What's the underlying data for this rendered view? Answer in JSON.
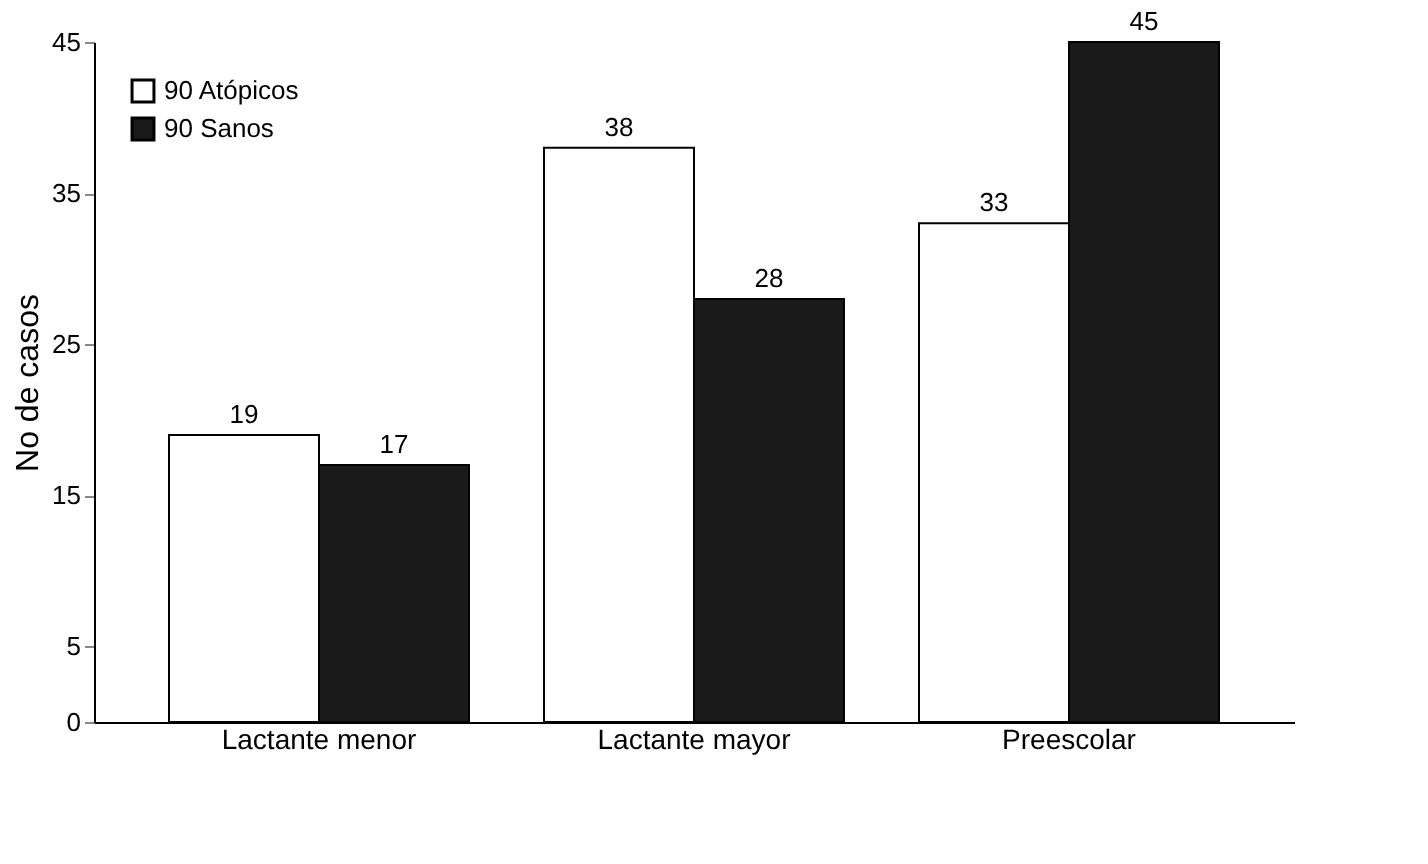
{
  "chart_data": {
    "type": "bar",
    "ylabel": "No de casos",
    "categories": [
      "Lactante menor",
      "Lactante mayor",
      "Preescolar"
    ],
    "series": [
      {
        "name": "90 Atópicos",
        "color": "#ffffff",
        "values": [
          19,
          38,
          33
        ]
      },
      {
        "name": "90 Sanos",
        "color": "#1a1a1a",
        "values": [
          17,
          28,
          45
        ]
      }
    ],
    "ylim": [
      0,
      45
    ],
    "yticks": [
      0,
      5,
      15,
      25,
      35,
      45
    ],
    "grid": false,
    "legend": "top left",
    "data_labels": true
  }
}
